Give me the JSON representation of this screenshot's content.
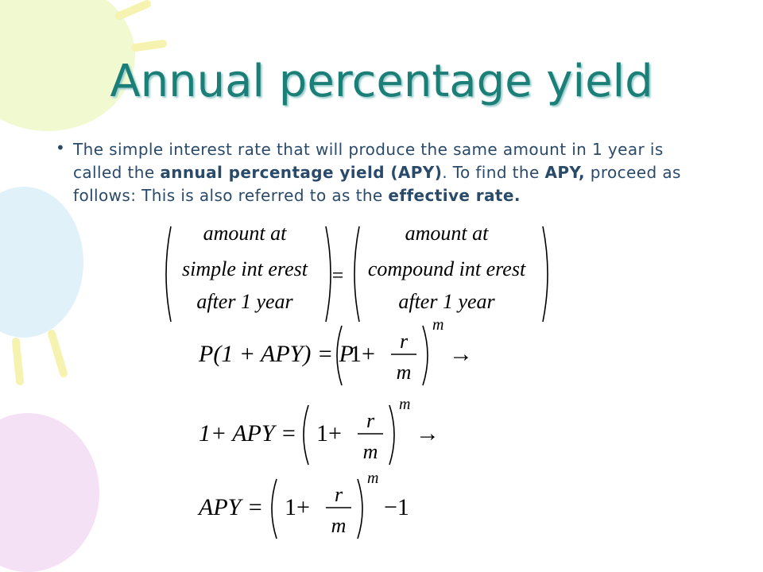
{
  "title": "Annual percentage yield",
  "bullet": [
    {
      "text": "The simple interest rate that will produce the same amount in 1 year is called the ",
      "bold": false
    },
    {
      "text": "annual percentage yield (APY)",
      "bold": true
    },
    {
      "text": ". To find the ",
      "bold": false
    },
    {
      "text": "APY,",
      "bold": true
    },
    {
      "text": " proceed as follows: This is also referred to as the ",
      "bold": false
    },
    {
      "text": "effective rate.",
      "bold": true
    }
  ],
  "definition": {
    "left": [
      "amount at",
      "simple int erest",
      "after 1 year"
    ],
    "op": "=",
    "right": [
      "amount at",
      "compound int erest",
      "after 1 year"
    ]
  },
  "equations": [
    {
      "lhs": "P(1 + APY) = P",
      "inner": "1+",
      "num": "r",
      "den": "m",
      "exp": "m",
      "tail": "→"
    },
    {
      "lhs": "1+ APY =",
      "inner": "1+",
      "num": "r",
      "den": "m",
      "exp": "m",
      "tail": "→"
    },
    {
      "lhs": "APY =",
      "inner": "1+",
      "num": "r",
      "den": "m",
      "exp": "m",
      "tail": "−1"
    }
  ]
}
